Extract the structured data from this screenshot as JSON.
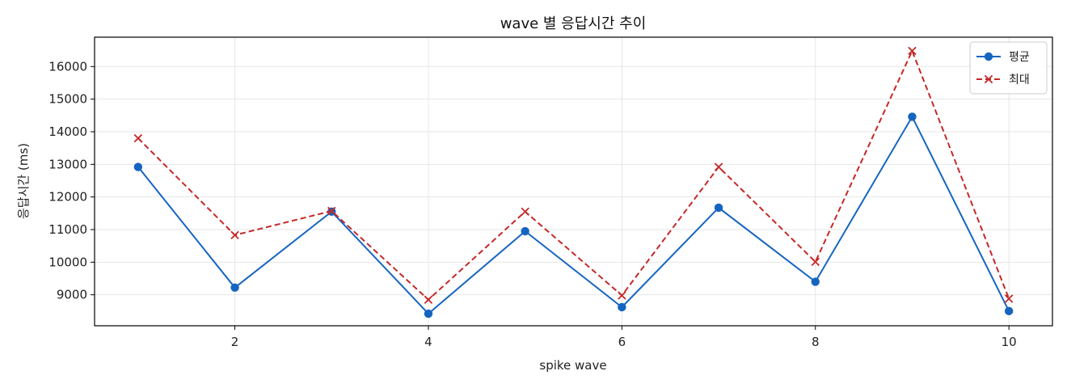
{
  "chart_data": {
    "type": "line",
    "title": "wave 별 응답시간 추이",
    "xlabel": "spike wave",
    "ylabel": "응답시간 (ms)",
    "x": [
      1,
      2,
      3,
      4,
      5,
      6,
      7,
      8,
      9,
      10
    ],
    "xlim": [
      0.55,
      10.45
    ],
    "ylim": [
      8050,
      16900
    ],
    "xticks": [
      2,
      4,
      6,
      8,
      10
    ],
    "yticks": [
      9000,
      10000,
      11000,
      12000,
      13000,
      14000,
      15000,
      16000
    ],
    "grid": true,
    "legend_position": "top-right",
    "series": [
      {
        "name": "평균",
        "color": "#1565c0",
        "line_style": "solid",
        "marker": "circle",
        "values": [
          12920,
          9220,
          11550,
          8420,
          10950,
          8620,
          11670,
          9400,
          14460,
          8500
        ]
      },
      {
        "name": "최대",
        "color": "#c62828",
        "line_style": "dashed",
        "marker": "x",
        "values": [
          13800,
          10830,
          11570,
          8850,
          11550,
          8980,
          12920,
          10010,
          16480,
          8880
        ]
      }
    ]
  }
}
